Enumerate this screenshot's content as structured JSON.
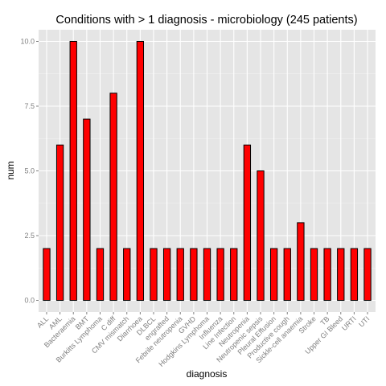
{
  "chart_data": {
    "type": "bar",
    "title": "Conditions with > 1 diagnosis - microbiology (245 patients)",
    "xlabel": "diagnosis",
    "ylabel": "num",
    "ylim": [
      -0.45,
      10.45
    ],
    "yticks": [
      "0.0",
      "2.5",
      "5.0",
      "7.5",
      "10.0"
    ],
    "ytick_values": [
      0,
      2.5,
      5,
      7.5,
      10
    ],
    "grid": true,
    "legend": "none",
    "colors": {
      "bar_fill": "#ff0000",
      "bar_stroke": "#000000",
      "panel": "#e5e5e5",
      "grid_major": "#ffffff",
      "grid_minor": "#f2f2f2"
    },
    "categories": [
      "ALL",
      "AML",
      "Bacteraemia",
      "BMT",
      "Burkitts Lymphoma",
      "C diff",
      "CMV mismatch",
      "Diarrhoea",
      "DLBCL",
      "engrafted",
      "Febrile neutropenia",
      "GVHD",
      "Hodgkins Lymphoma",
      "Influenza",
      "Line Infection",
      "Neutropenia",
      "Neutropenic sepsis",
      "Pleural Effusion",
      "Productive cough",
      "Sickle-cell anaemia",
      "Stroke",
      "TB",
      "Upper GI Bleed",
      "URTI",
      "UTI"
    ],
    "values": [
      2,
      6,
      10,
      7,
      2,
      8,
      2,
      10,
      2,
      2,
      2,
      2,
      2,
      2,
      2,
      6,
      5,
      2,
      2,
      3,
      2,
      2,
      2,
      2,
      2
    ]
  }
}
